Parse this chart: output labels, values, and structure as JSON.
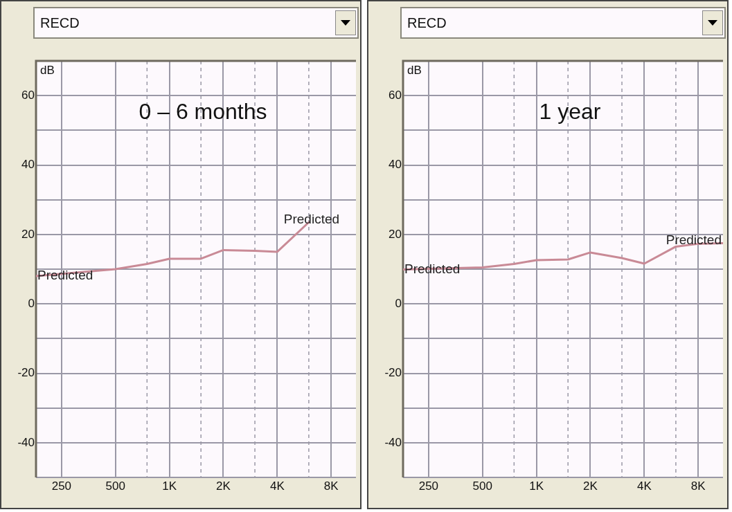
{
  "chart_data": [
    {
      "type": "line",
      "title": "RECD",
      "subtitle": "0 – 6 months",
      "ylabel": "dB",
      "log": "x",
      "grid": true,
      "marker": "none",
      "line_style": "solid",
      "legend": false,
      "xlim": [
        180,
        11000
      ],
      "ylim": [
        -50,
        70
      ],
      "xticks": [
        {
          "value": 250,
          "label": "250"
        },
        {
          "value": 500,
          "label": "500"
        },
        {
          "value": 750,
          "label": null
        },
        {
          "value": 1000,
          "label": "1K"
        },
        {
          "value": 1500,
          "label": null
        },
        {
          "value": 2000,
          "label": "2K"
        },
        {
          "value": 3000,
          "label": null
        },
        {
          "value": 4000,
          "label": "4K"
        },
        {
          "value": 6000,
          "label": null
        },
        {
          "value": 8000,
          "label": "8K"
        }
      ],
      "yticks": [
        {
          "value": -50,
          "label": null
        },
        -40,
        {
          "value": -30,
          "label": null
        },
        -20,
        {
          "value": -10,
          "label": null
        },
        0,
        {
          "value": 10,
          "label": null
        },
        20,
        {
          "value": 30,
          "label": null
        },
        40,
        {
          "value": 50,
          "label": null
        },
        60,
        {
          "value": 70,
          "label": null
        }
      ],
      "series": [
        {
          "name": "Predicted",
          "color": "#c98a96",
          "x": [
            180,
            500,
            750,
            1000,
            1500,
            2000,
            3000,
            4000,
            6000
          ],
          "values": [
            8,
            10,
            11.5,
            13,
            13,
            15.5,
            15.3,
            15,
            23.5
          ]
        }
      ]
    },
    {
      "type": "line",
      "title": "RECD",
      "subtitle": "1 year",
      "ylabel": "dB",
      "log": "x",
      "grid": true,
      "marker": "none",
      "line_style": "solid",
      "legend": false,
      "xlim": [
        180,
        11000
      ],
      "ylim": [
        -50,
        70
      ],
      "xticks": [
        {
          "value": 250,
          "label": "250"
        },
        {
          "value": 500,
          "label": "500"
        },
        {
          "value": 750,
          "label": null
        },
        {
          "value": 1000,
          "label": "1K"
        },
        {
          "value": 1500,
          "label": null
        },
        {
          "value": 2000,
          "label": "2K"
        },
        {
          "value": 3000,
          "label": null
        },
        {
          "value": 4000,
          "label": "4K"
        },
        {
          "value": 6000,
          "label": null
        },
        {
          "value": 8000,
          "label": "8K"
        }
      ],
      "yticks": [
        {
          "value": -50,
          "label": null
        },
        -40,
        {
          "value": -30,
          "label": null
        },
        -20,
        {
          "value": -10,
          "label": null
        },
        0,
        {
          "value": 10,
          "label": null
        },
        20,
        {
          "value": 30,
          "label": null
        },
        40,
        {
          "value": 50,
          "label": null
        },
        60,
        {
          "value": 70,
          "label": null
        }
      ],
      "series": [
        {
          "name": "Predicted",
          "color": "#c98a96",
          "x": [
            180,
            500,
            750,
            1000,
            1500,
            2000,
            3000,
            4000,
            6000,
            8000,
            11000
          ],
          "values": [
            9.9,
            10.5,
            11.5,
            12.6,
            12.8,
            14.8,
            13.2,
            11.6,
            16.5,
            17.3,
            17.5
          ]
        }
      ]
    }
  ]
}
